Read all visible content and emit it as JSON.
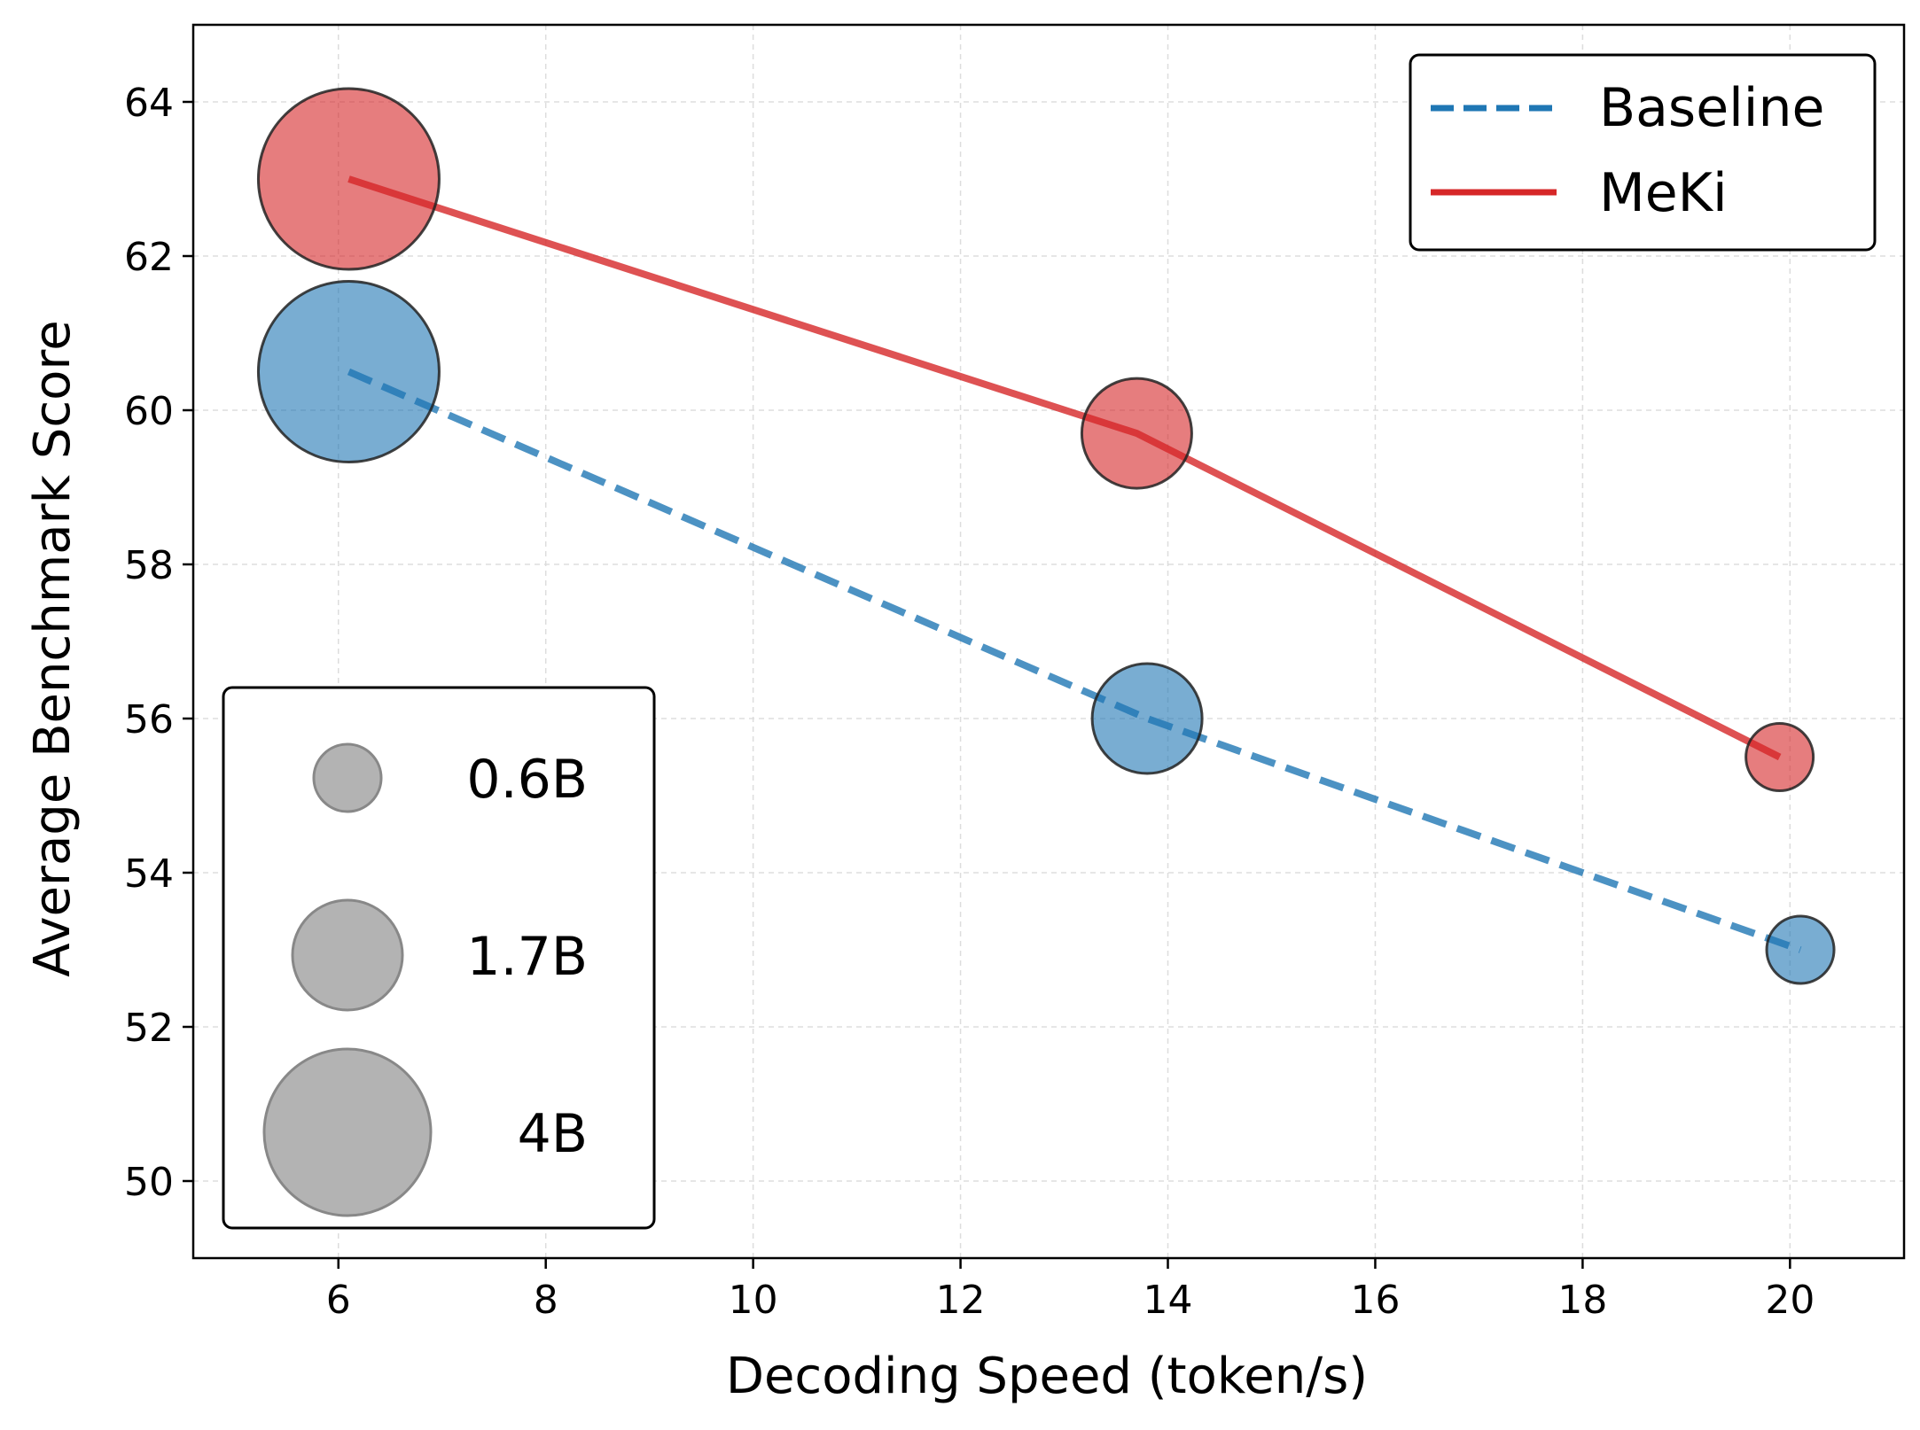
{
  "chart_data": {
    "type": "scatter",
    "title": "",
    "xlabel": "Decoding Speed (token/s)",
    "ylabel": "Average Benchmark Score",
    "xlim": [
      4.6,
      21.1
    ],
    "ylim": [
      49.0,
      65.0
    ],
    "xticks": [
      6,
      8,
      10,
      12,
      14,
      16,
      18,
      20
    ],
    "yticks": [
      50,
      52,
      54,
      56,
      58,
      60,
      62,
      64
    ],
    "grid": true,
    "series": [
      {
        "name": "Baseline",
        "color": "#1f77b4",
        "line_style": "dashed",
        "points": [
          {
            "x": 6.1,
            "y": 60.5,
            "size": "4B"
          },
          {
            "x": 13.8,
            "y": 56.0,
            "size": "1.7B"
          },
          {
            "x": 20.1,
            "y": 53.0,
            "size": "0.6B"
          }
        ]
      },
      {
        "name": "MeKi",
        "color": "#d62728",
        "line_style": "solid",
        "points": [
          {
            "x": 6.1,
            "y": 63.0,
            "size": "4B"
          },
          {
            "x": 13.7,
            "y": 59.7,
            "size": "1.7B"
          },
          {
            "x": 19.9,
            "y": 55.5,
            "size": "0.6B"
          }
        ]
      }
    ],
    "marker_size_legend": [
      {
        "label": "0.6B",
        "params_b": 0.6
      },
      {
        "label": "1.7B",
        "params_b": 1.7
      },
      {
        "label": "4B",
        "params_b": 4.0
      }
    ],
    "legend_position": "top-right",
    "size_legend_position": "bottom-left"
  }
}
